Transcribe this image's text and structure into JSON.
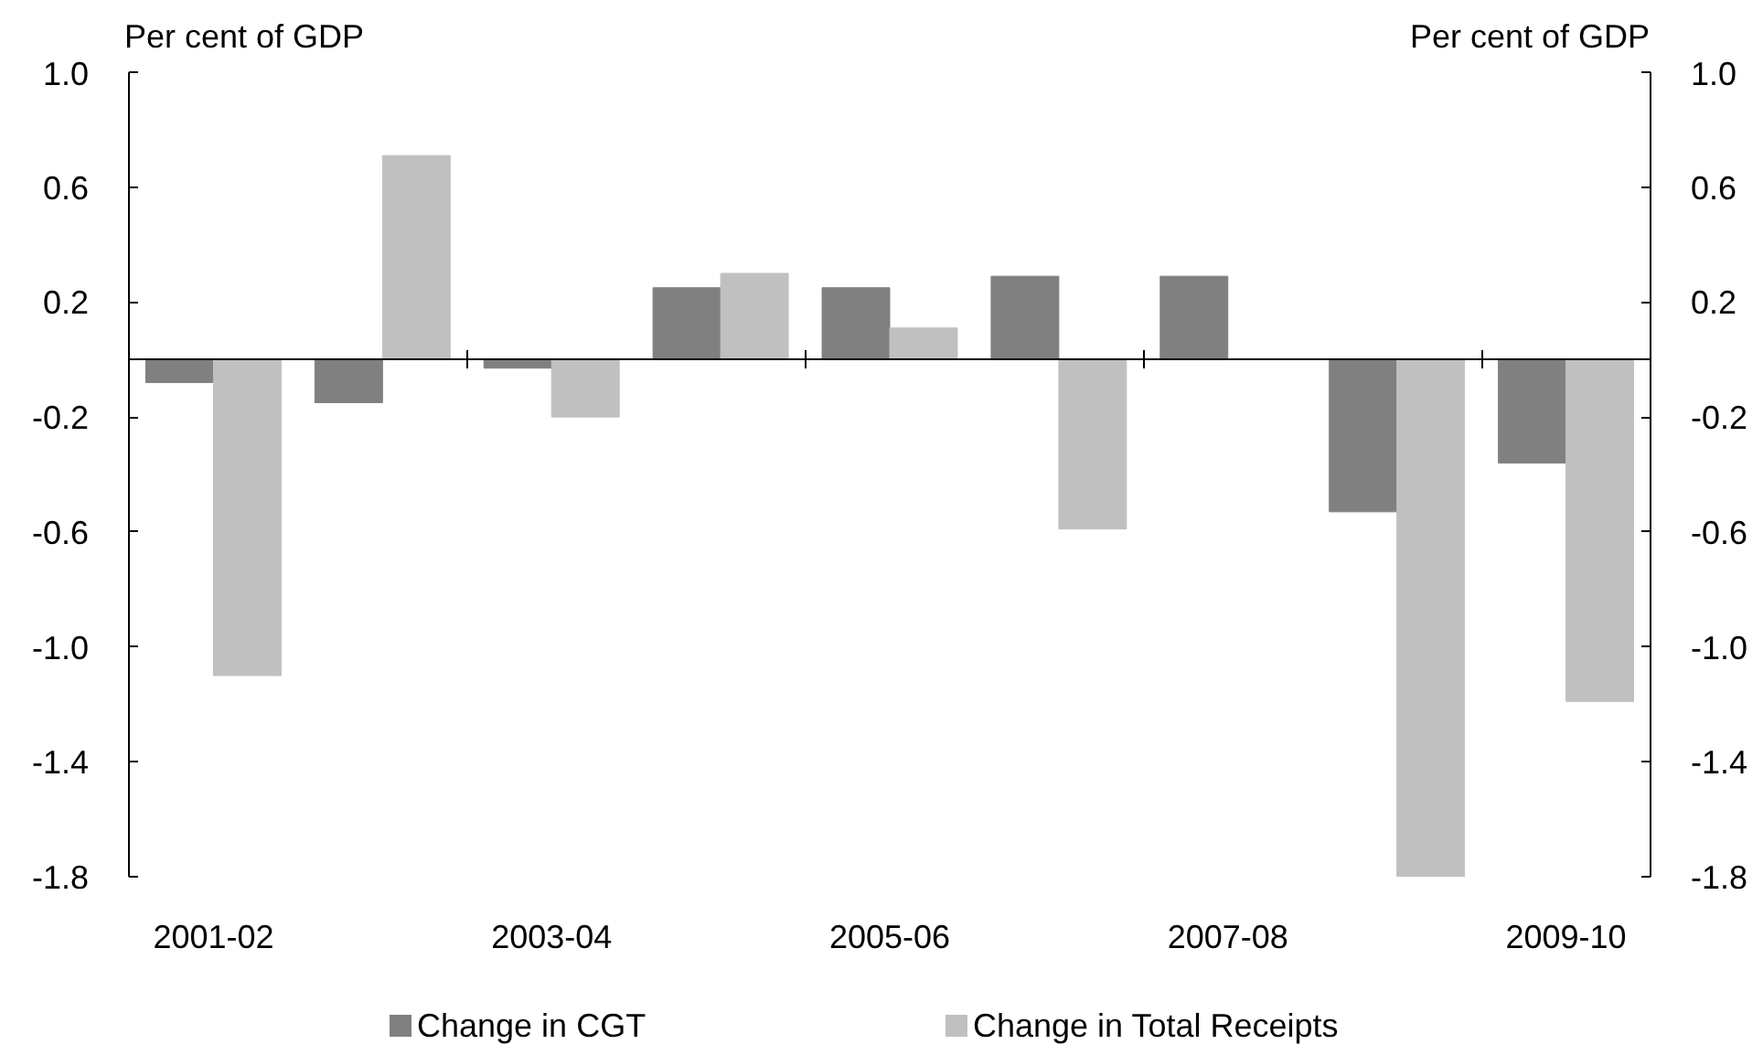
{
  "chart_data": {
    "type": "bar",
    "categories": [
      "2001-02",
      null,
      "2003-04",
      null,
      "2005-06",
      null,
      "2007-08",
      null,
      "2009-10"
    ],
    "ylabel": "Per cent of GDP",
    "y2label": "Per cent of GDP",
    "ylim": [
      -1.8,
      1.0
    ],
    "yticks": [
      -1.8,
      -1.4,
      {
        "value": -1,
        "label": "-1.0"
      },
      -0.6,
      -0.2,
      0.2,
      0.6,
      {
        "value": 1,
        "label": "1.0"
      }
    ],
    "y2lim": [
      -1.8,
      1.0
    ],
    "y2ticks": [
      -1.8,
      -1.4,
      {
        "value": -1,
        "label": "-1.0"
      },
      -0.6,
      -0.2,
      0.2,
      0.6,
      {
        "value": 1,
        "label": "1.0"
      }
    ],
    "series": [
      {
        "name": "Change in CGT",
        "color": "#808080",
        "values": [
          -0.08,
          -0.15,
          -0.03,
          0.25,
          0.25,
          0.29,
          0.29,
          -0.53,
          -0.36
        ]
      },
      {
        "name": "Change in Total Receipts",
        "color": "#c0c0c0",
        "values": [
          -1.1,
          0.71,
          -0.2,
          0.3,
          0.11,
          -0.59,
          null,
          -1.8,
          -1.19
        ]
      }
    ],
    "legend": "bottom",
    "grid": false
  }
}
